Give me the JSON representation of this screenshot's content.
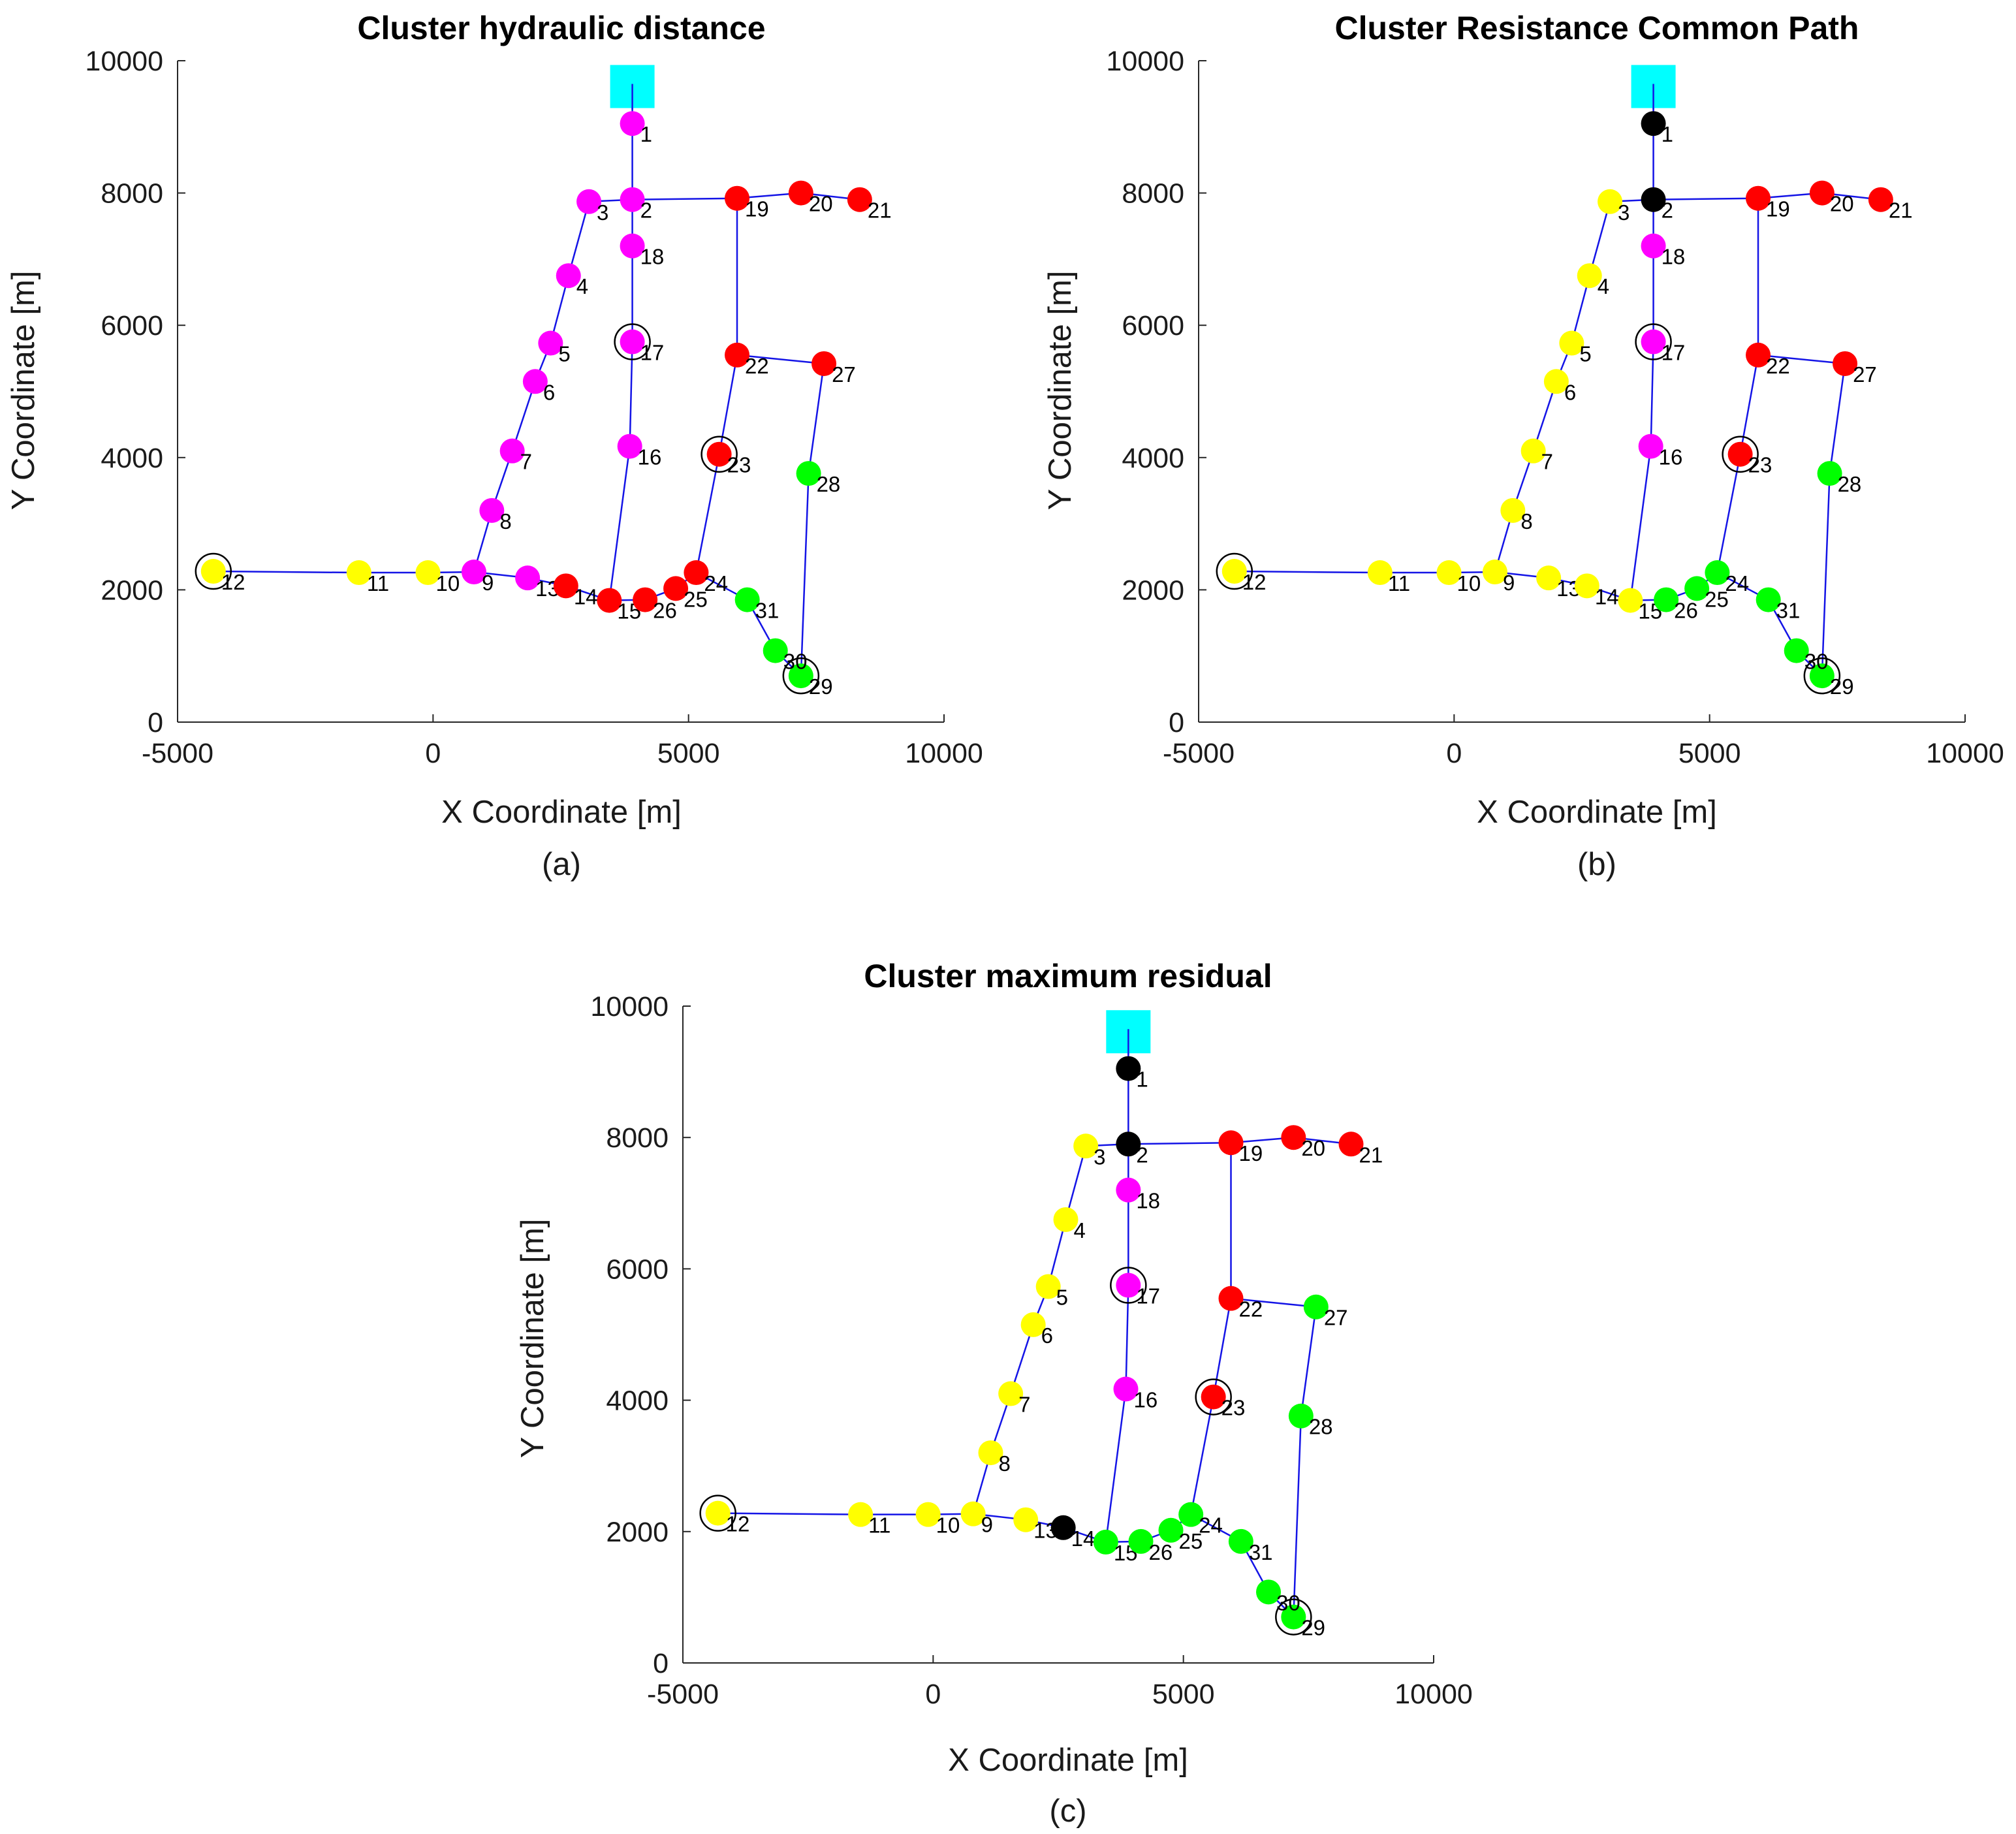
{
  "colors": {
    "edge": "#1414e6",
    "magenta": "#ff00ff",
    "yellow": "#ffff00",
    "red": "#ff0000",
    "green": "#00ff00",
    "black": "#000000",
    "source": "#00ffff"
  },
  "chart_data": [
    {
      "type": "scatter",
      "title": "Cluster hydraulic distance",
      "xlabel": "X Coordinate [m]",
      "ylabel": "Y Coordinate [m]",
      "caption": "(a)",
      "xlim": [
        -5000,
        10000
      ],
      "ylim": [
        0,
        10000
      ],
      "xticks": [
        "-5000",
        "0",
        "5000",
        "10000"
      ],
      "yticks": [
        "0",
        "2000",
        "4000",
        "6000",
        "8000",
        "10000"
      ],
      "source": {
        "x": 3900,
        "y": 9600
      },
      "nodes": [
        {
          "id": "1",
          "x": 3900,
          "y": 9050,
          "cluster": "magenta"
        },
        {
          "id": "2",
          "x": 3900,
          "y": 7900,
          "cluster": "magenta"
        },
        {
          "id": "3",
          "x": 3050,
          "y": 7870,
          "cluster": "magenta"
        },
        {
          "id": "4",
          "x": 2650,
          "y": 6750,
          "cluster": "magenta"
        },
        {
          "id": "5",
          "x": 2300,
          "y": 5730,
          "cluster": "magenta"
        },
        {
          "id": "6",
          "x": 2000,
          "y": 5150,
          "cluster": "magenta"
        },
        {
          "id": "7",
          "x": 1550,
          "y": 4100,
          "cluster": "magenta"
        },
        {
          "id": "8",
          "x": 1150,
          "y": 3200,
          "cluster": "magenta"
        },
        {
          "id": "9",
          "x": 800,
          "y": 2270,
          "cluster": "magenta"
        },
        {
          "id": "10",
          "x": -100,
          "y": 2260,
          "cluster": "yellow"
        },
        {
          "id": "11",
          "x": -1450,
          "y": 2260,
          "cluster": "yellow"
        },
        {
          "id": "12",
          "x": -4300,
          "y": 2280,
          "cluster": "yellow",
          "ring": true
        },
        {
          "id": "13",
          "x": 1850,
          "y": 2180,
          "cluster": "magenta"
        },
        {
          "id": "14",
          "x": 2600,
          "y": 2060,
          "cluster": "red"
        },
        {
          "id": "15",
          "x": 3450,
          "y": 1840,
          "cluster": "red"
        },
        {
          "id": "16",
          "x": 3850,
          "y": 4170,
          "cluster": "magenta"
        },
        {
          "id": "17",
          "x": 3900,
          "y": 5750,
          "cluster": "magenta",
          "ring": true
        },
        {
          "id": "18",
          "x": 3900,
          "y": 7200,
          "cluster": "magenta"
        },
        {
          "id": "19",
          "x": 5950,
          "y": 7920,
          "cluster": "red"
        },
        {
          "id": "20",
          "x": 7200,
          "y": 8000,
          "cluster": "red"
        },
        {
          "id": "21",
          "x": 8350,
          "y": 7900,
          "cluster": "red"
        },
        {
          "id": "22",
          "x": 5950,
          "y": 5550,
          "cluster": "red"
        },
        {
          "id": "23",
          "x": 5600,
          "y": 4050,
          "cluster": "red",
          "ring": true
        },
        {
          "id": "24",
          "x": 5150,
          "y": 2260,
          "cluster": "red"
        },
        {
          "id": "25",
          "x": 4750,
          "y": 2020,
          "cluster": "red"
        },
        {
          "id": "26",
          "x": 4150,
          "y": 1850,
          "cluster": "red"
        },
        {
          "id": "27",
          "x": 7650,
          "y": 5420,
          "cluster": "red"
        },
        {
          "id": "28",
          "x": 7350,
          "y": 3760,
          "cluster": "green"
        },
        {
          "id": "29",
          "x": 7200,
          "y": 700,
          "cluster": "green",
          "ring": true
        },
        {
          "id": "30",
          "x": 6700,
          "y": 1080,
          "cluster": "green"
        },
        {
          "id": "31",
          "x": 6150,
          "y": 1850,
          "cluster": "green"
        }
      ]
    },
    {
      "type": "scatter",
      "title": "Cluster Resistance Common Path",
      "xlabel": "X Coordinate [m]",
      "ylabel": "Y Coordinate [m]",
      "caption": "(b)",
      "xlim": [
        -5000,
        10000
      ],
      "ylim": [
        0,
        10000
      ],
      "xticks": [
        "-5000",
        "0",
        "5000",
        "10000"
      ],
      "yticks": [
        "0",
        "2000",
        "4000",
        "6000",
        "8000",
        "10000"
      ],
      "source": {
        "x": 3900,
        "y": 9600
      },
      "nodes": [
        {
          "id": "1",
          "x": 3900,
          "y": 9050,
          "cluster": "black"
        },
        {
          "id": "2",
          "x": 3900,
          "y": 7900,
          "cluster": "black"
        },
        {
          "id": "3",
          "x": 3050,
          "y": 7870,
          "cluster": "yellow"
        },
        {
          "id": "4",
          "x": 2650,
          "y": 6750,
          "cluster": "yellow"
        },
        {
          "id": "5",
          "x": 2300,
          "y": 5730,
          "cluster": "yellow"
        },
        {
          "id": "6",
          "x": 2000,
          "y": 5150,
          "cluster": "yellow"
        },
        {
          "id": "7",
          "x": 1550,
          "y": 4100,
          "cluster": "yellow"
        },
        {
          "id": "8",
          "x": 1150,
          "y": 3200,
          "cluster": "yellow"
        },
        {
          "id": "9",
          "x": 800,
          "y": 2270,
          "cluster": "yellow"
        },
        {
          "id": "10",
          "x": -100,
          "y": 2260,
          "cluster": "yellow"
        },
        {
          "id": "11",
          "x": -1450,
          "y": 2260,
          "cluster": "yellow"
        },
        {
          "id": "12",
          "x": -4300,
          "y": 2280,
          "cluster": "yellow",
          "ring": true
        },
        {
          "id": "13",
          "x": 1850,
          "y": 2180,
          "cluster": "yellow"
        },
        {
          "id": "14",
          "x": 2600,
          "y": 2060,
          "cluster": "yellow"
        },
        {
          "id": "15",
          "x": 3450,
          "y": 1840,
          "cluster": "yellow"
        },
        {
          "id": "16",
          "x": 3850,
          "y": 4170,
          "cluster": "magenta"
        },
        {
          "id": "17",
          "x": 3900,
          "y": 5750,
          "cluster": "magenta",
          "ring": true
        },
        {
          "id": "18",
          "x": 3900,
          "y": 7200,
          "cluster": "magenta"
        },
        {
          "id": "19",
          "x": 5950,
          "y": 7920,
          "cluster": "red"
        },
        {
          "id": "20",
          "x": 7200,
          "y": 8000,
          "cluster": "red"
        },
        {
          "id": "21",
          "x": 8350,
          "y": 7900,
          "cluster": "red"
        },
        {
          "id": "22",
          "x": 5950,
          "y": 5550,
          "cluster": "red"
        },
        {
          "id": "23",
          "x": 5600,
          "y": 4050,
          "cluster": "red",
          "ring": true
        },
        {
          "id": "24",
          "x": 5150,
          "y": 2260,
          "cluster": "green"
        },
        {
          "id": "25",
          "x": 4750,
          "y": 2020,
          "cluster": "green"
        },
        {
          "id": "26",
          "x": 4150,
          "y": 1850,
          "cluster": "green"
        },
        {
          "id": "27",
          "x": 7650,
          "y": 5420,
          "cluster": "red"
        },
        {
          "id": "28",
          "x": 7350,
          "y": 3760,
          "cluster": "green"
        },
        {
          "id": "29",
          "x": 7200,
          "y": 700,
          "cluster": "green",
          "ring": true
        },
        {
          "id": "30",
          "x": 6700,
          "y": 1080,
          "cluster": "green"
        },
        {
          "id": "31",
          "x": 6150,
          "y": 1850,
          "cluster": "green"
        }
      ]
    },
    {
      "type": "scatter",
      "title": "Cluster maximum residual",
      "xlabel": "X Coordinate [m]",
      "ylabel": "Y Coordinate [m]",
      "caption": "(c)",
      "xlim": [
        -5000,
        10000
      ],
      "ylim": [
        0,
        10000
      ],
      "xticks": [
        "-5000",
        "0",
        "5000",
        "10000"
      ],
      "yticks": [
        "0",
        "2000",
        "4000",
        "6000",
        "8000",
        "10000"
      ],
      "source": {
        "x": 3900,
        "y": 9600
      },
      "nodes": [
        {
          "id": "1",
          "x": 3900,
          "y": 9050,
          "cluster": "black"
        },
        {
          "id": "2",
          "x": 3900,
          "y": 7900,
          "cluster": "black"
        },
        {
          "id": "3",
          "x": 3050,
          "y": 7870,
          "cluster": "yellow"
        },
        {
          "id": "4",
          "x": 2650,
          "y": 6750,
          "cluster": "yellow"
        },
        {
          "id": "5",
          "x": 2300,
          "y": 5730,
          "cluster": "yellow"
        },
        {
          "id": "6",
          "x": 2000,
          "y": 5150,
          "cluster": "yellow"
        },
        {
          "id": "7",
          "x": 1550,
          "y": 4100,
          "cluster": "yellow"
        },
        {
          "id": "8",
          "x": 1150,
          "y": 3200,
          "cluster": "yellow"
        },
        {
          "id": "9",
          "x": 800,
          "y": 2270,
          "cluster": "yellow"
        },
        {
          "id": "10",
          "x": -100,
          "y": 2260,
          "cluster": "yellow"
        },
        {
          "id": "11",
          "x": -1450,
          "y": 2260,
          "cluster": "yellow"
        },
        {
          "id": "12",
          "x": -4300,
          "y": 2280,
          "cluster": "yellow",
          "ring": true
        },
        {
          "id": "13",
          "x": 1850,
          "y": 2180,
          "cluster": "yellow"
        },
        {
          "id": "14",
          "x": 2600,
          "y": 2060,
          "cluster": "black"
        },
        {
          "id": "15",
          "x": 3450,
          "y": 1840,
          "cluster": "green"
        },
        {
          "id": "16",
          "x": 3850,
          "y": 4170,
          "cluster": "magenta"
        },
        {
          "id": "17",
          "x": 3900,
          "y": 5750,
          "cluster": "magenta",
          "ring": true
        },
        {
          "id": "18",
          "x": 3900,
          "y": 7200,
          "cluster": "magenta"
        },
        {
          "id": "19",
          "x": 5950,
          "y": 7920,
          "cluster": "red"
        },
        {
          "id": "20",
          "x": 7200,
          "y": 8000,
          "cluster": "red"
        },
        {
          "id": "21",
          "x": 8350,
          "y": 7900,
          "cluster": "red"
        },
        {
          "id": "22",
          "x": 5950,
          "y": 5550,
          "cluster": "red"
        },
        {
          "id": "23",
          "x": 5600,
          "y": 4050,
          "cluster": "red",
          "ring": true
        },
        {
          "id": "24",
          "x": 5150,
          "y": 2260,
          "cluster": "green"
        },
        {
          "id": "25",
          "x": 4750,
          "y": 2020,
          "cluster": "green"
        },
        {
          "id": "26",
          "x": 4150,
          "y": 1850,
          "cluster": "green"
        },
        {
          "id": "27",
          "x": 7650,
          "y": 5420,
          "cluster": "green"
        },
        {
          "id": "28",
          "x": 7350,
          "y": 3760,
          "cluster": "green"
        },
        {
          "id": "29",
          "x": 7200,
          "y": 700,
          "cluster": "green",
          "ring": true
        },
        {
          "id": "30",
          "x": 6700,
          "y": 1080,
          "cluster": "green"
        },
        {
          "id": "31",
          "x": 6150,
          "y": 1850,
          "cluster": "green"
        }
      ]
    }
  ],
  "edges": [
    [
      "S",
      "1"
    ],
    [
      "1",
      "2"
    ],
    [
      "2",
      "3"
    ],
    [
      "3",
      "4"
    ],
    [
      "4",
      "5"
    ],
    [
      "5",
      "6"
    ],
    [
      "6",
      "7"
    ],
    [
      "7",
      "8"
    ],
    [
      "8",
      "9"
    ],
    [
      "9",
      "10"
    ],
    [
      "10",
      "11"
    ],
    [
      "11",
      "12"
    ],
    [
      "9",
      "13"
    ],
    [
      "13",
      "14"
    ],
    [
      "14",
      "15"
    ],
    [
      "15",
      "16"
    ],
    [
      "16",
      "17"
    ],
    [
      "17",
      "18"
    ],
    [
      "18",
      "2"
    ],
    [
      "2",
      "19"
    ],
    [
      "19",
      "20"
    ],
    [
      "20",
      "21"
    ],
    [
      "19",
      "22"
    ],
    [
      "22",
      "23"
    ],
    [
      "23",
      "24"
    ],
    [
      "24",
      "25"
    ],
    [
      "25",
      "26"
    ],
    [
      "26",
      "15"
    ],
    [
      "22",
      "27"
    ],
    [
      "27",
      "28"
    ],
    [
      "28",
      "29"
    ],
    [
      "29",
      "30"
    ],
    [
      "30",
      "31"
    ],
    [
      "31",
      "24"
    ]
  ]
}
